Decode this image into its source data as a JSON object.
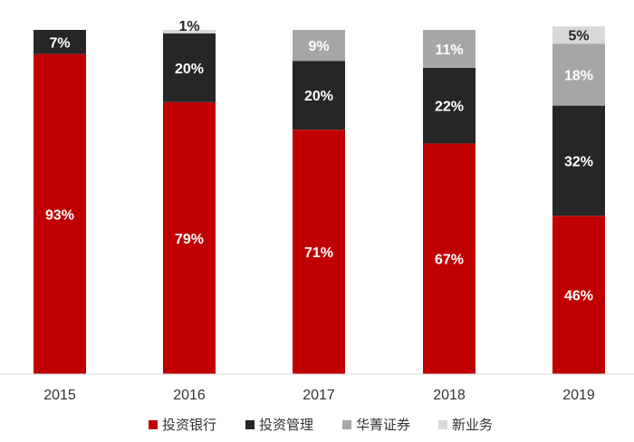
{
  "chart_data": {
    "type": "bar",
    "stacked": true,
    "categories": [
      "2015",
      "2016",
      "2017",
      "2018",
      "2019"
    ],
    "series": [
      {
        "name": "投资银行",
        "values": [
          93,
          79,
          71,
          67,
          46
        ],
        "color": "#C00000",
        "label_color": "#ffffff"
      },
      {
        "name": "投资管理",
        "values": [
          7,
          20,
          20,
          22,
          32
        ],
        "color": "#262626",
        "label_color": "#ffffff"
      },
      {
        "name": "华菁证券",
        "values": [
          0,
          0,
          9,
          11,
          18
        ],
        "color": "#A6A6A6",
        "label_color": "#ffffff"
      },
      {
        "name": "新业务",
        "values": [
          0,
          1,
          0,
          0,
          5
        ],
        "color": "#D9D9D9",
        "label_color": "#262626"
      }
    ],
    "labels": [
      [
        "93%",
        "79%",
        "71%",
        "67%",
        "46%"
      ],
      [
        "7%",
        "20%",
        "20%",
        "22%",
        "32%"
      ],
      [
        "",
        "",
        "9%",
        "11%",
        "18%"
      ],
      [
        "",
        "1%",
        "",
        "",
        "5%"
      ]
    ],
    "ylim": [
      0,
      100
    ],
    "grid": false,
    "legend_position": "bottom"
  }
}
